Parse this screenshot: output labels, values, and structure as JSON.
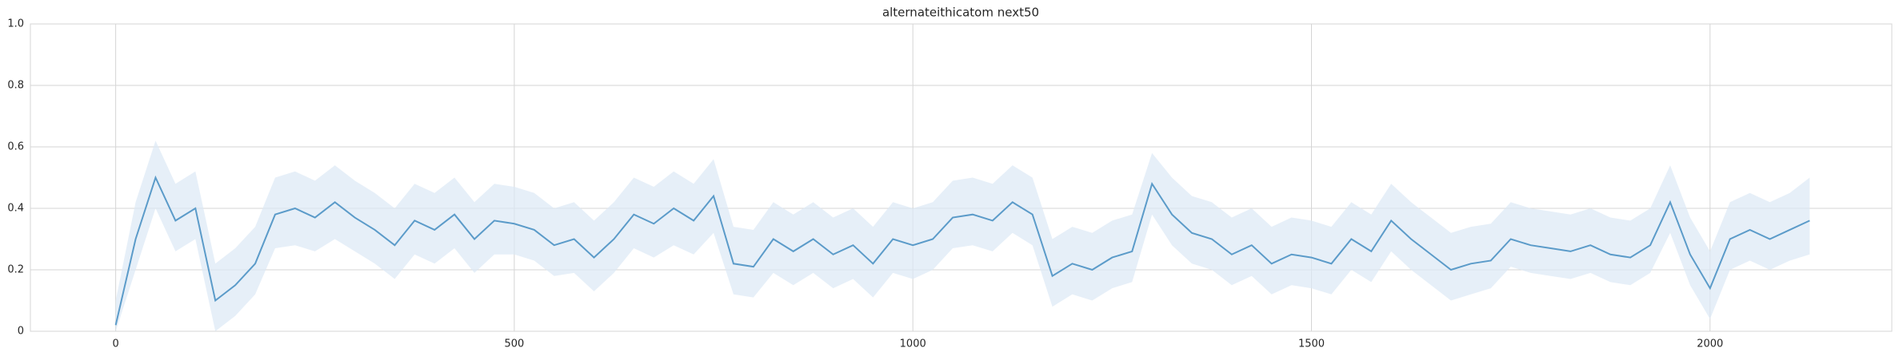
{
  "chart_data": {
    "type": "line",
    "title": "alternateithicatom next50",
    "x": [
      0,
      25,
      50,
      75,
      100,
      125,
      150,
      175,
      200,
      225,
      250,
      275,
      300,
      325,
      350,
      375,
      400,
      425,
      450,
      475,
      500,
      525,
      550,
      575,
      600,
      625,
      650,
      675,
      700,
      725,
      750,
      775,
      800,
      825,
      850,
      875,
      900,
      925,
      950,
      975,
      1000,
      1025,
      1050,
      1075,
      1100,
      1125,
      1150,
      1175,
      1200,
      1225,
      1250,
      1275,
      1300,
      1325,
      1350,
      1375,
      1400,
      1425,
      1450,
      1475,
      1500,
      1525,
      1550,
      1575,
      1600,
      1625,
      1650,
      1675,
      1700,
      1725,
      1750,
      1775,
      1800,
      1825,
      1850,
      1875,
      1900,
      1925,
      1950,
      1975,
      2000,
      2025,
      2050,
      2075,
      2100,
      2125
    ],
    "values": [
      0.02,
      0.3,
      0.5,
      0.36,
      0.4,
      0.1,
      0.15,
      0.22,
      0.38,
      0.4,
      0.37,
      0.42,
      0.37,
      0.33,
      0.28,
      0.36,
      0.33,
      0.38,
      0.3,
      0.36,
      0.35,
      0.33,
      0.28,
      0.3,
      0.24,
      0.3,
      0.38,
      0.35,
      0.4,
      0.36,
      0.44,
      0.22,
      0.21,
      0.3,
      0.26,
      0.3,
      0.25,
      0.28,
      0.22,
      0.3,
      0.28,
      0.3,
      0.37,
      0.38,
      0.36,
      0.42,
      0.38,
      0.18,
      0.22,
      0.2,
      0.24,
      0.26,
      0.48,
      0.38,
      0.32,
      0.3,
      0.25,
      0.28,
      0.22,
      0.25,
      0.24,
      0.22,
      0.3,
      0.26,
      0.36,
      0.3,
      0.25,
      0.2,
      0.22,
      0.23,
      0.3,
      0.28,
      0.27,
      0.26,
      0.28,
      0.25,
      0.24,
      0.28,
      0.42,
      0.25,
      0.14,
      0.3,
      0.33,
      0.3,
      0.33,
      0.36
    ],
    "band_lower": [
      0.0,
      0.2,
      0.4,
      0.26,
      0.3,
      0.0,
      0.05,
      0.12,
      0.27,
      0.28,
      0.26,
      0.3,
      0.26,
      0.22,
      0.17,
      0.25,
      0.22,
      0.27,
      0.19,
      0.25,
      0.25,
      0.23,
      0.18,
      0.19,
      0.13,
      0.19,
      0.27,
      0.24,
      0.28,
      0.25,
      0.32,
      0.12,
      0.11,
      0.19,
      0.15,
      0.19,
      0.14,
      0.17,
      0.11,
      0.19,
      0.17,
      0.2,
      0.27,
      0.28,
      0.26,
      0.32,
      0.28,
      0.08,
      0.12,
      0.1,
      0.14,
      0.16,
      0.38,
      0.28,
      0.22,
      0.2,
      0.15,
      0.18,
      0.12,
      0.15,
      0.14,
      0.12,
      0.2,
      0.16,
      0.26,
      0.2,
      0.15,
      0.1,
      0.12,
      0.14,
      0.21,
      0.19,
      0.18,
      0.17,
      0.19,
      0.16,
      0.15,
      0.19,
      0.32,
      0.15,
      0.04,
      0.2,
      0.23,
      0.2,
      0.23,
      0.25
    ],
    "band_upper": [
      0.1,
      0.42,
      0.62,
      0.48,
      0.52,
      0.22,
      0.27,
      0.34,
      0.5,
      0.52,
      0.49,
      0.54,
      0.49,
      0.45,
      0.4,
      0.48,
      0.45,
      0.5,
      0.42,
      0.48,
      0.47,
      0.45,
      0.4,
      0.42,
      0.36,
      0.42,
      0.5,
      0.47,
      0.52,
      0.48,
      0.56,
      0.34,
      0.33,
      0.42,
      0.38,
      0.42,
      0.37,
      0.4,
      0.34,
      0.42,
      0.4,
      0.42,
      0.49,
      0.5,
      0.48,
      0.54,
      0.5,
      0.3,
      0.34,
      0.32,
      0.36,
      0.38,
      0.58,
      0.5,
      0.44,
      0.42,
      0.37,
      0.4,
      0.34,
      0.37,
      0.36,
      0.34,
      0.42,
      0.38,
      0.48,
      0.42,
      0.37,
      0.32,
      0.34,
      0.35,
      0.42,
      0.4,
      0.39,
      0.38,
      0.4,
      0.37,
      0.36,
      0.4,
      0.54,
      0.37,
      0.26,
      0.42,
      0.45,
      0.42,
      0.45,
      0.5
    ],
    "color": "#5b9bc9",
    "band_color": "#dbe8f5",
    "xlim": [
      -107,
      2228
    ],
    "xticks": [
      0,
      500,
      1000,
      1500,
      2000
    ],
    "ylim": [
      0,
      1
    ],
    "yticks": [
      0,
      {
        "value": 0.2,
        "label": "0.2"
      },
      {
        "value": 0.4,
        "label": "0.4"
      },
      {
        "value": 0.6,
        "label": "0.6"
      },
      {
        "value": 0.8,
        "label": "0.8"
      },
      {
        "value": 1,
        "label": "1.0"
      }
    ],
    "grid": true
  }
}
